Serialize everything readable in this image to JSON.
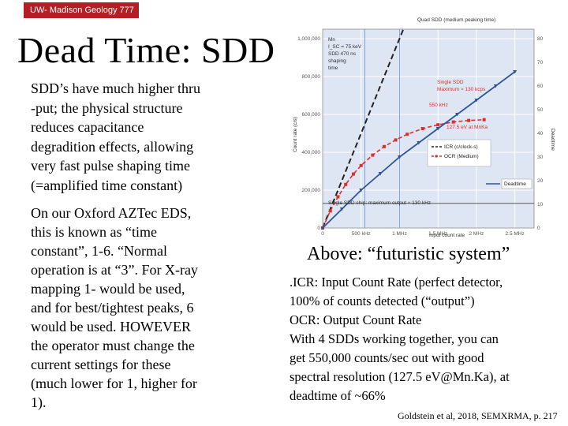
{
  "header": {
    "course_label": "UW- Madison Geology  777",
    "title": "Dead Time: SDD"
  },
  "left_text": {
    "paragraph1_lines": [
      "SDD’s have much higher thru",
      "-put; the physical structure",
      "reduces capacitance",
      "degradition effects, allowing",
      "very fast pulse shaping time",
      "(=amplified time constant)"
    ],
    "paragraph2_lines": [
      "On our Oxford AZTec EDS,",
      "this is known as “time",
      "constant”, 1-6.  “Normal",
      "operation is at “3”. For X-ray",
      "mapping 1- would be used,",
      "and for best/tightest peaks, 6",
      "would be used. HOWEVER",
      "the operator must change the",
      "current settings for these",
      "(much lower for 1, higher for",
      "1)."
    ]
  },
  "right_text": {
    "caption": "Above:  “futuristic system”",
    "lines": [
      ".ICR: Input Count Rate (perfect detector,",
      "100% of counts detected (“output”)",
      "OCR: Output Count Rate",
      "With 4 SDDs working together, you can",
      "get 550,000 counts/sec out with good",
      "spectral resolution (127.5 eV@Mn.Ka), at",
      "deadtime of ~66%"
    ],
    "citation": "Goldstein et al, 2018, SEMXRMA, p. 217"
  },
  "colors": {
    "course_bar": "#b21f24",
    "icr": "#222222",
    "ocr": "#d9302c",
    "deadtime": "#2f5597",
    "chart_bg": "#dde6f2"
  },
  "chart_data": {
    "type": "line",
    "title": "Quad SDD (medium peaking time)",
    "xlabel": "Input count rate",
    "ylabel": "Count rate (c/s)",
    "y2label": "Deadtime",
    "x_ticks": [
      "0",
      "500 kHz",
      "1 MHz",
      "1.5 MHz",
      "2 MHz",
      "2.5 MHz"
    ],
    "x_tick_values": [
      0,
      500000,
      1000000,
      1500000,
      2000000,
      2500000
    ],
    "xlim": [
      0,
      2750000
    ],
    "y_ticks": [
      "0",
      "200,000",
      "400,000",
      "600,000",
      "800,000",
      "1,000,000"
    ],
    "y_tick_values": [
      0,
      200000,
      400000,
      600000,
      800000,
      1000000
    ],
    "ylim": [
      0,
      1050000
    ],
    "y2_ticks": [
      "0",
      "10",
      "20",
      "30",
      "40",
      "50",
      "60",
      "70",
      "80"
    ],
    "y2lim": [
      0,
      84
    ],
    "legend": [
      "ICR (c/clock-s)",
      "OCR (Medium)",
      "Deadtime"
    ],
    "annotations": [
      "Mn",
      "I_SC = 75 keV",
      "SDD 470 ns",
      "shaping",
      "time",
      "Single SDD",
      "Maximum ≈ 130 kcps",
      "550 kHz",
      "127.5 eV at MnKa",
      "Single SDD chip: maximum output ≈ 130 kHz"
    ],
    "series": [
      {
        "name": "ICR (c/clock-s)",
        "x": [
          0,
          150000,
          300000,
          450000,
          600000,
          750000,
          900000,
          1050000
        ],
        "values": [
          0,
          150000,
          300000,
          450000,
          600000,
          750000,
          900000,
          1050000
        ]
      },
      {
        "name": "OCR (Medium)",
        "x": [
          0,
          100000,
          200000,
          300000,
          400000,
          500000,
          650000,
          800000,
          950000,
          1100000,
          1300000,
          1500000,
          1700000,
          1900000,
          2100000
        ],
        "values": [
          0,
          90000,
          165000,
          230000,
          285000,
          330000,
          385000,
          430000,
          465000,
          495000,
          525000,
          545000,
          560000,
          568000,
          572000
        ]
      },
      {
        "name": "Deadtime",
        "x": [
          0,
          250000,
          500000,
          750000,
          1000000,
          1250000,
          1500000,
          1750000,
          2000000,
          2250000,
          2500000
        ],
        "values": [
          0,
          8,
          16,
          23,
          30,
          36,
          42,
          48,
          54,
          60,
          66
        ]
      }
    ]
  }
}
